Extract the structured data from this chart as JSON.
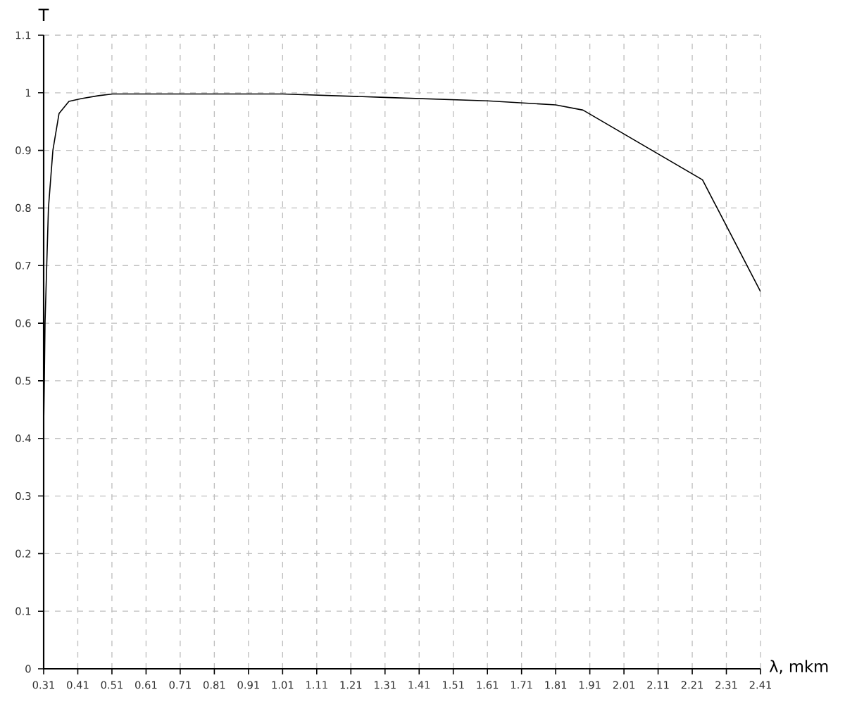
{
  "chart_data": {
    "type": "line",
    "xlabel": "λ, mkm",
    "ylabel": "T",
    "x": [
      0.31,
      0.312,
      0.314,
      0.319,
      0.324,
      0.337,
      0.355,
      0.384,
      0.421,
      0.471,
      0.512,
      1.01,
      1.31,
      1.61,
      1.81,
      1.89,
      2.24,
      2.41
    ],
    "series": [
      {
        "color": "#000000",
        "values": [
          0.42,
          0.5,
          0.6,
          0.7,
          0.8,
          0.9,
          0.964,
          0.985,
          0.99,
          0.995,
          0.998,
          0.998,
          0.992,
          0.986,
          0.979,
          0.97,
          0.849,
          0.655
        ]
      }
    ],
    "xlim": [
      0.31,
      2.41
    ],
    "ylim": [
      0,
      1.1
    ],
    "xticks": [
      0.31,
      0.41,
      0.51,
      0.61,
      0.71,
      0.81,
      0.91,
      1.01,
      1.11,
      1.21,
      1.31,
      1.41,
      1.51,
      1.61,
      1.71,
      1.81,
      1.91,
      2.01,
      2.11,
      2.21,
      2.31,
      2.41
    ],
    "yticks": [
      0,
      0.1,
      0.2,
      0.3,
      0.4,
      0.5,
      0.6,
      0.7,
      0.8,
      0.9,
      1,
      1.1
    ],
    "grid": true,
    "marker": "none",
    "line_style": "solid"
  }
}
